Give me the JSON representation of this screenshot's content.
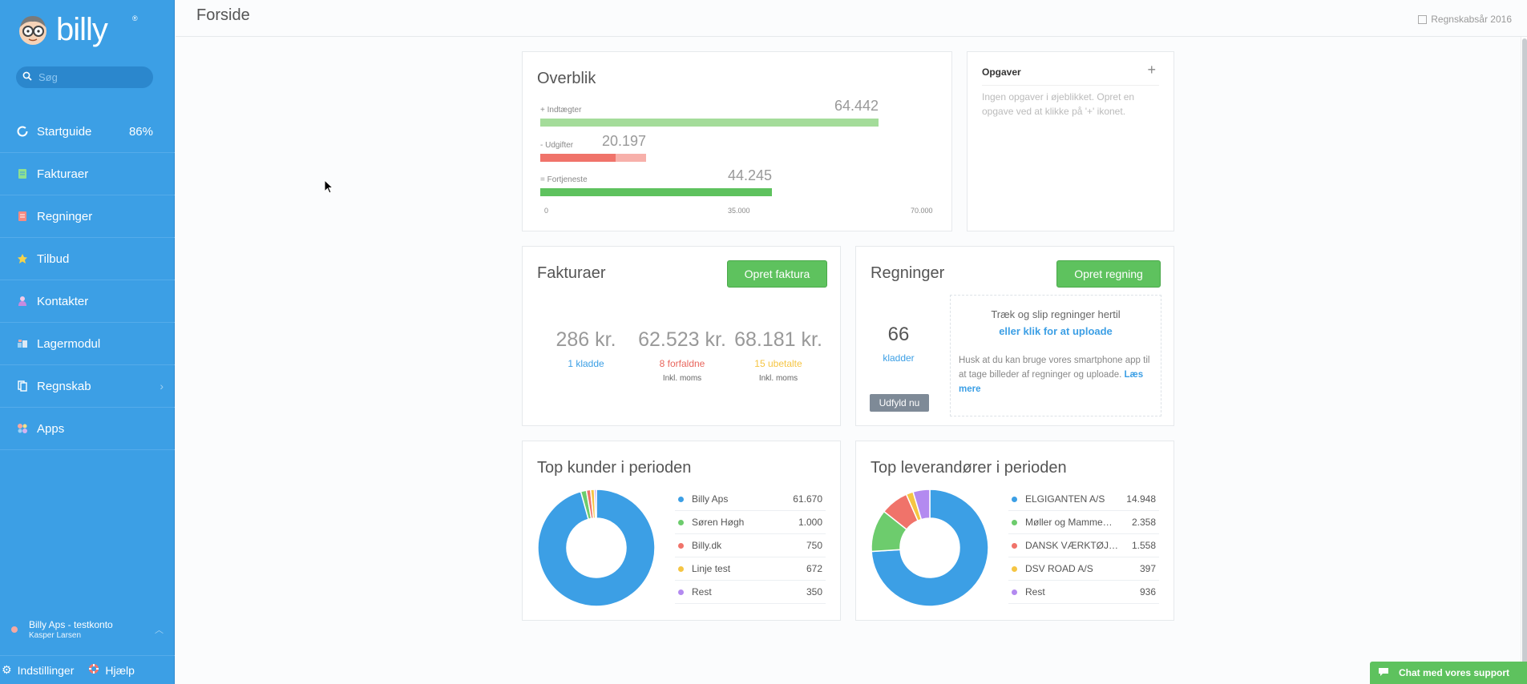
{
  "app": {
    "name": "billy",
    "reg": "®"
  },
  "search": {
    "placeholder": "Søg"
  },
  "sidebar": {
    "items": [
      {
        "label": "Startguide",
        "badge": "86%",
        "icon": "startguide-ring-icon"
      },
      {
        "label": "Fakturaer",
        "icon": "invoice-icon"
      },
      {
        "label": "Regninger",
        "icon": "bill-icon"
      },
      {
        "label": "Tilbud",
        "icon": "quote-star-icon"
      },
      {
        "label": "Kontakter",
        "icon": "contact-person-icon"
      },
      {
        "label": "Lagermodul",
        "icon": "inventory-icon"
      },
      {
        "label": "Regnskab",
        "icon": "accounting-icon"
      },
      {
        "label": "Apps",
        "icon": "apps-icon"
      }
    ],
    "account": {
      "name": "Billy Aps - testkonto",
      "user": "Kasper Larsen"
    },
    "footer": {
      "settings": "Indstillinger",
      "help": "Hjælp"
    }
  },
  "header": {
    "title": "Forside",
    "fiscal_year": "Regnskabsår 2016"
  },
  "overview": {
    "title": "Overblik",
    "income": {
      "sign": "+",
      "label": "Indtægter",
      "value": "64.442",
      "amount": 64442
    },
    "expenses": {
      "sign": "-",
      "label": "Udgifter",
      "value": "20.197",
      "amount": 20197
    },
    "profit": {
      "sign": "=",
      "label": "Fortjeneste",
      "value": "44.245",
      "amount": 44245
    },
    "axis": [
      "0",
      "35.000",
      "70.000"
    ],
    "axis_max": 70000,
    "colors": {
      "income": "#a4dc9a",
      "expense_dark": "#f0736a",
      "expense_light": "#f7b0aa",
      "profit": "#5ec25e"
    }
  },
  "tasks": {
    "title": "Opgaver",
    "add": "+",
    "empty": "Ingen opgaver i øjeblikket. Opret en opgave ved at klikke på '+' ikonet."
  },
  "invoices": {
    "title": "Fakturaer",
    "create": "Opret faktura",
    "stats": [
      {
        "amount": "286 kr.",
        "link": "1 kladde",
        "color": "#3c9fe5",
        "note": ""
      },
      {
        "amount": "62.523 kr.",
        "link": "8 forfaldne",
        "color": "#e8665d",
        "note": "Inkl. moms"
      },
      {
        "amount": "68.181 kr.",
        "link": "15 ubetalte",
        "color": "#f5c543",
        "note": "Inkl. moms"
      }
    ]
  },
  "bills": {
    "title": "Regninger",
    "create": "Opret regning",
    "count": "66",
    "count_label": "kladder",
    "fill": "Udfyld nu",
    "drop_title": "Træk og slip regninger hertil",
    "drop_link": "eller klik for at uploade",
    "hint": "Husk at du kan bruge vores smartphone app til at tage billeder af regninger og uploade.",
    "more": "Læs mere"
  },
  "top_customers": {
    "title": "Top kunder i perioden",
    "chart_data": {
      "type": "pie",
      "categories": [
        "Billy Aps",
        "Søren Høgh",
        "Billy.dk",
        "Linje test",
        "Rest"
      ],
      "values": [
        61670,
        1000,
        750,
        672,
        350
      ],
      "labels": [
        "61.670",
        "1.000",
        "750",
        "672",
        "350"
      ],
      "colors": [
        "#3c9fe5",
        "#6dcc6d",
        "#f0736a",
        "#f5c543",
        "#b38af0"
      ]
    }
  },
  "top_suppliers": {
    "title": "Top leverandører i perioden",
    "chart_data": {
      "type": "pie",
      "categories": [
        "ELGIGANTEN A/S",
        "Møller og Mamme…",
        "DANSK VÆRKTØJ…",
        "DSV ROAD A/S",
        "Rest"
      ],
      "values": [
        14948,
        2358,
        1558,
        397,
        936
      ],
      "labels": [
        "14.948",
        "2.358",
        "1.558",
        "397",
        "936"
      ],
      "colors": [
        "#3c9fe5",
        "#6dcc6d",
        "#f0736a",
        "#f5c543",
        "#b38af0"
      ]
    }
  },
  "chat": {
    "label": "Chat med vores support"
  }
}
